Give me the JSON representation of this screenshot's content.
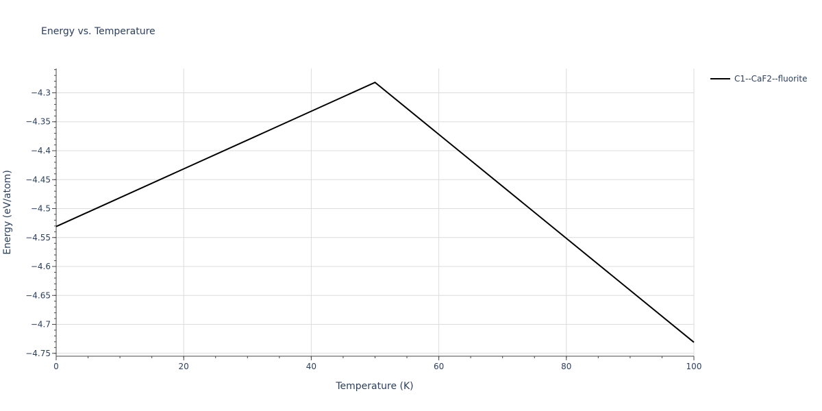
{
  "chart_data": {
    "type": "line",
    "title": "Energy vs. Temperature",
    "xlabel": "Temperature (K)",
    "ylabel": "Energy (eV/atom)",
    "xlim": [
      0,
      100
    ],
    "ylim": [
      -4.755,
      -4.258
    ],
    "x_ticks": [
      0,
      20,
      40,
      60,
      80,
      100
    ],
    "x_tick_labels": [
      "0",
      "20",
      "40",
      "60",
      "80",
      "100"
    ],
    "y_ticks": [
      -4.3,
      -4.35,
      -4.4,
      -4.45,
      -4.5,
      -4.55,
      -4.6,
      -4.65,
      -4.7,
      -4.75
    ],
    "y_tick_labels": [
      "−4.3",
      "−4.35",
      "−4.4",
      "−4.45",
      "−4.5",
      "−4.55",
      "−4.6",
      "−4.65",
      "−4.7",
      "−4.75"
    ],
    "grid": true,
    "legend_position": "top-right-outside",
    "series": [
      {
        "name": "C1--CaF2--fluorite",
        "color": "#000000",
        "x": [
          0,
          50,
          100
        ],
        "y": [
          -4.531,
          -4.282,
          -4.731
        ]
      }
    ]
  }
}
